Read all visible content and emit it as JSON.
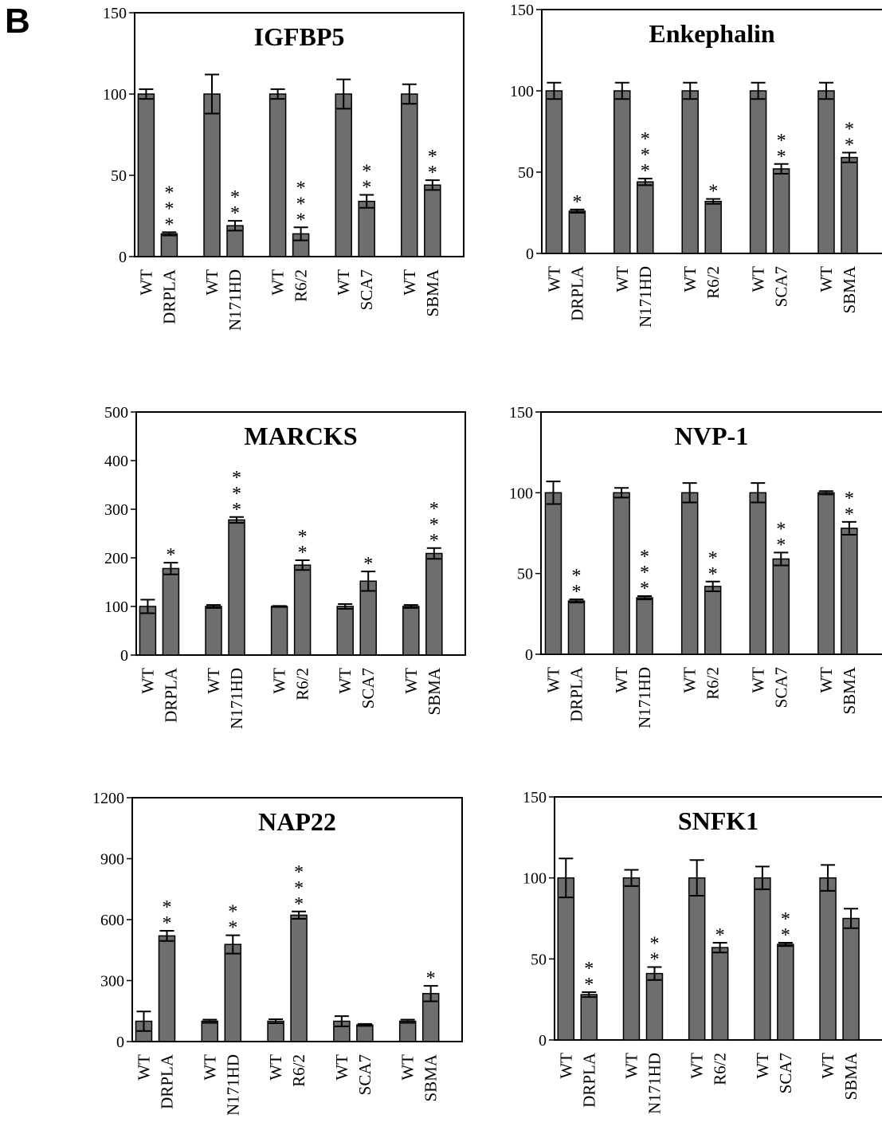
{
  "figure": {
    "panel_label": "B"
  },
  "chart_data": [
    {
      "type": "bar",
      "title": "IGFBP5",
      "categories": [
        "WT",
        "DRPLA",
        "WT",
        "N171HD",
        "WT",
        "R6/2",
        "WT",
        "SCA7",
        "WT",
        "SBMA"
      ],
      "values": [
        100,
        14,
        100,
        19,
        100,
        14,
        100,
        34,
        100,
        44
      ],
      "errors": [
        3,
        1,
        12,
        3,
        3,
        4,
        9,
        4,
        6,
        3
      ],
      "significance": [
        "",
        "***",
        "",
        "**",
        "",
        "***",
        "",
        "**",
        "",
        "**"
      ],
      "ylim": [
        0,
        150
      ],
      "yticks": [
        0,
        50,
        100,
        150
      ],
      "bar_color": "#6e6e6e"
    },
    {
      "type": "bar",
      "title": "Enkephalin",
      "categories": [
        "WT",
        "DRPLA",
        "WT",
        "N171HD",
        "WT",
        "R6/2",
        "WT",
        "SCA7",
        "WT",
        "SBMA"
      ],
      "values": [
        100,
        26,
        100,
        44,
        100,
        32,
        100,
        52,
        100,
        59
      ],
      "errors": [
        5,
        1,
        5,
        2,
        5,
        1.5,
        5,
        3,
        5,
        3
      ],
      "significance": [
        "",
        "*",
        "",
        "***",
        "",
        "*",
        "",
        "**",
        "",
        "**"
      ],
      "ylim": [
        0,
        150
      ],
      "yticks": [
        0,
        50,
        100,
        150
      ],
      "bar_color": "#6e6e6e"
    },
    {
      "type": "bar",
      "title": "MARCKS",
      "categories": [
        "WT",
        "DRPLA",
        "WT",
        "N171HD",
        "WT",
        "R6/2",
        "WT",
        "SCA7",
        "WT",
        "SBMA"
      ],
      "values": [
        100,
        178,
        100,
        278,
        100,
        185,
        100,
        152,
        100,
        209
      ],
      "errors": [
        14,
        12,
        3,
        6,
        1,
        10,
        5,
        20,
        3,
        11
      ],
      "significance": [
        "",
        "*",
        "",
        "***",
        "",
        "**",
        "",
        "*",
        "",
        "***"
      ],
      "ylim": [
        0,
        500
      ],
      "yticks": [
        0,
        100,
        200,
        300,
        400,
        500
      ],
      "bar_color": "#6e6e6e"
    },
    {
      "type": "bar",
      "title": "NVP-1",
      "categories": [
        "WT",
        "DRPLA",
        "WT",
        "N171HD",
        "WT",
        "R6/2",
        "WT",
        "SCA7",
        "WT",
        "SBMA"
      ],
      "values": [
        100,
        33,
        100,
        35,
        100,
        42,
        100,
        59,
        100,
        78
      ],
      "errors": [
        7,
        1,
        3,
        1,
        6,
        3,
        6,
        4,
        1,
        4
      ],
      "significance": [
        "",
        "**",
        "",
        "***",
        "",
        "**",
        "",
        "**",
        "",
        "**"
      ],
      "ylim": [
        0,
        150
      ],
      "yticks": [
        0,
        50,
        100,
        150
      ],
      "bar_color": "#6e6e6e"
    },
    {
      "type": "bar",
      "title": "NAP22",
      "categories": [
        "WT",
        "DRPLA",
        "WT",
        "N171HD",
        "WT",
        "R6/2",
        "WT",
        "SCA7",
        "WT",
        "SBMA"
      ],
      "values": [
        100,
        520,
        100,
        478,
        100,
        622,
        100,
        82,
        100,
        236
      ],
      "errors": [
        48,
        25,
        8,
        45,
        10,
        18,
        25,
        5,
        8,
        38
      ],
      "significance": [
        "",
        "**",
        "",
        "**",
        "",
        "***",
        "",
        "",
        "",
        "*"
      ],
      "ylim": [
        0,
        1200
      ],
      "yticks": [
        0,
        300,
        600,
        900,
        1200
      ],
      "bar_color": "#6e6e6e"
    },
    {
      "type": "bar",
      "title": "SNFK1",
      "categories": [
        "WT",
        "DRPLA",
        "WT",
        "N171HD",
        "WT",
        "R6/2",
        "WT",
        "SCA7",
        "WT",
        "SBMA"
      ],
      "values": [
        100,
        28,
        100,
        41,
        100,
        57,
        100,
        59,
        100,
        75
      ],
      "errors": [
        12,
        1.5,
        5,
        4,
        11,
        3,
        7,
        1,
        8,
        6
      ],
      "significance": [
        "",
        "**",
        "",
        "**",
        "",
        "*",
        "",
        "**",
        "",
        ""
      ],
      "ylim": [
        0,
        150
      ],
      "yticks": [
        0,
        50,
        100,
        150
      ],
      "bar_color": "#6e6e6e"
    }
  ]
}
